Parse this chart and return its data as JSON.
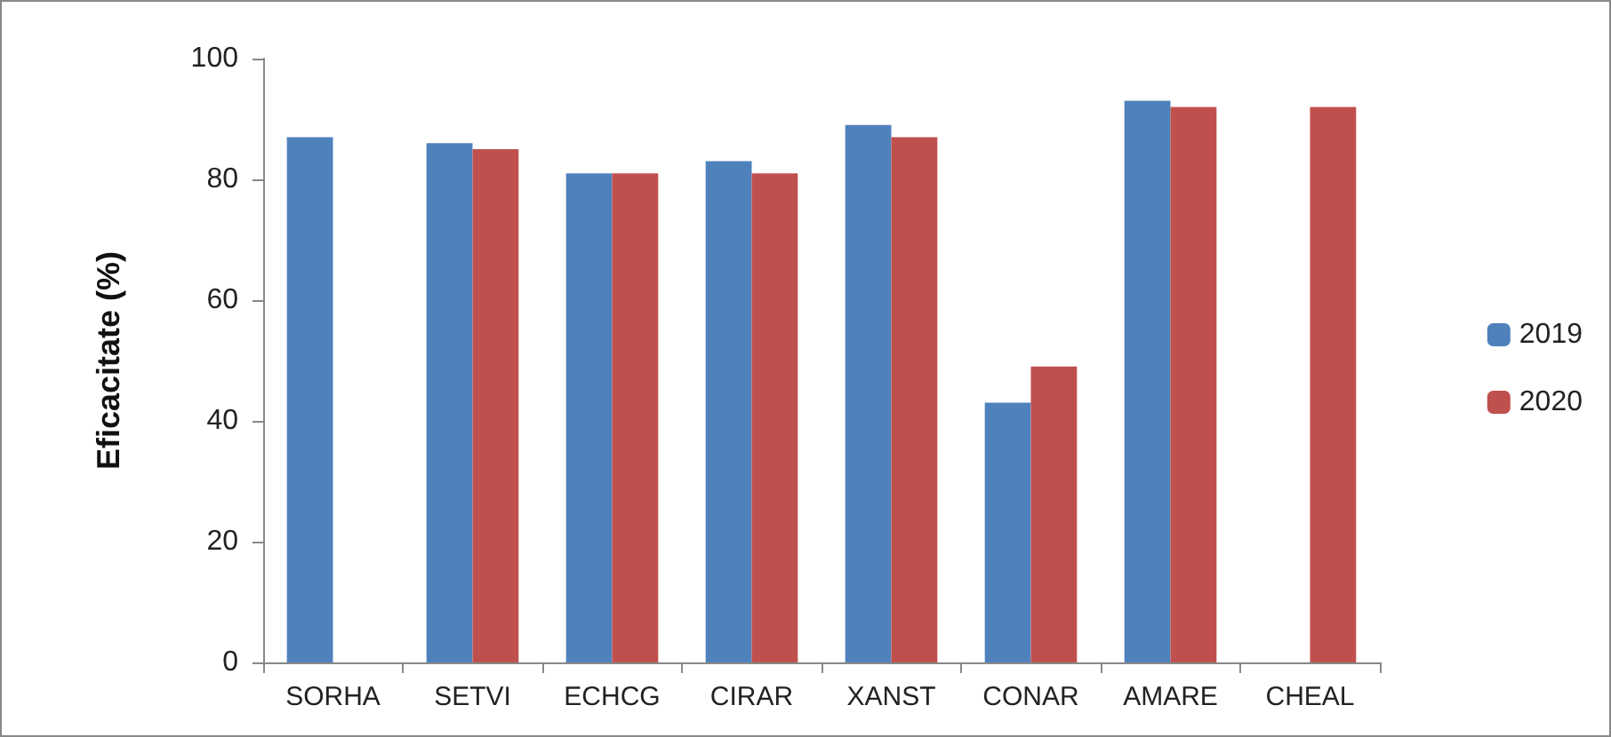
{
  "chart_data": {
    "type": "bar",
    "ylabel": "Eficacitate (%)",
    "categories": [
      "SORHA",
      "SETVI",
      "ECHCG",
      "CIRAR",
      "XANST",
      "CONAR",
      "AMARE",
      "CHEAL"
    ],
    "series": [
      {
        "name": "2019",
        "color": "#4f81bd",
        "values": [
          87,
          86,
          81,
          83,
          89,
          43,
          93,
          null
        ]
      },
      {
        "name": "2020",
        "color": "#c0504d",
        "values": [
          null,
          85,
          81,
          81,
          87,
          49,
          92,
          92
        ]
      }
    ],
    "ylim": [
      0,
      100
    ],
    "yticks": [
      0,
      20,
      40,
      60,
      80,
      100
    ],
    "grid": false,
    "legend": "right"
  }
}
